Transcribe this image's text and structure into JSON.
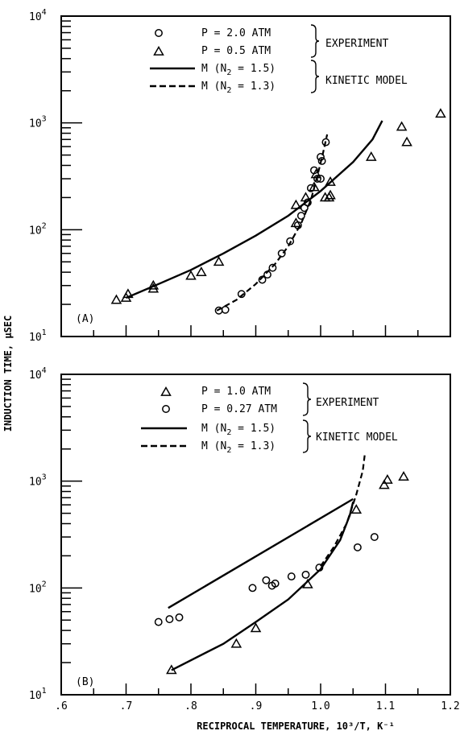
{
  "figure": {
    "ylabel": "INDUCTION TIME, μSEC",
    "xlabel": "RECIPROCAL TEMPERATURE, 10³/T, K⁻¹",
    "x_ticks": [
      ".6",
      ".7",
      ".8",
      ".9",
      "1.0",
      "1.1",
      "1.2"
    ]
  },
  "chart_data": [
    {
      "type": "scatter",
      "panel_label": "(A)",
      "x": {
        "lim": [
          0.6,
          1.2
        ],
        "scale": "linear"
      },
      "y": {
        "lim": [
          10,
          10000
        ],
        "scale": "log",
        "ticks": [
          10,
          100,
          1000,
          10000
        ]
      },
      "y_tick_labels": [
        {
          "base": "10",
          "exp": "1"
        },
        {
          "base": "10",
          "exp": "2"
        },
        {
          "base": "10",
          "exp": "3"
        },
        {
          "base": "10",
          "exp": "4"
        }
      ],
      "legend": {
        "experiment_label": "EXPERIMENT",
        "model_label": "KINETIC MODEL",
        "entries": [
          {
            "symbol": "circle",
            "text": "P = 2.0 ATM"
          },
          {
            "symbol": "triangle",
            "text": "P = 0.5 ATM"
          },
          {
            "symbol": "solid",
            "text": "M (N2 = 1.5)"
          },
          {
            "symbol": "dashed",
            "text": "M (N2 = 1.3)"
          }
        ]
      },
      "series": [
        {
          "name": "P = 2.0 ATM",
          "marker": "circle",
          "points": [
            [
              0.843,
              17.5
            ],
            [
              0.853,
              17.8
            ],
            [
              0.878,
              25
            ],
            [
              0.91,
              34
            ],
            [
              0.918,
              38
            ],
            [
              0.926,
              44
            ],
            [
              0.94,
              60
            ],
            [
              0.953,
              78
            ],
            [
              0.965,
              110
            ],
            [
              0.97,
              135
            ],
            [
              0.975,
              160
            ],
            [
              0.98,
              180
            ],
            [
              0.985,
              245
            ],
            [
              0.99,
              360
            ],
            [
              0.995,
              300
            ],
            [
              1.0,
              480
            ],
            [
              1.0,
              300
            ],
            [
              1.002,
              440
            ],
            [
              1.008,
              660
            ]
          ]
        },
        {
          "name": "P = 0.5 ATM",
          "marker": "triangle",
          "points": [
            [
              0.685,
              22
            ],
            [
              0.7,
              23
            ],
            [
              0.703,
              25
            ],
            [
              0.742,
              28
            ],
            [
              0.742,
              30
            ],
            [
              0.8,
              37
            ],
            [
              0.816,
              40
            ],
            [
              0.843,
              50
            ],
            [
              0.962,
              115
            ],
            [
              0.962,
              170
            ],
            [
              0.977,
              200
            ],
            [
              0.99,
              250
            ],
            [
              0.993,
              330
            ],
            [
              1.007,
              200
            ],
            [
              1.013,
              200
            ],
            [
              1.015,
              210
            ],
            [
              1.015,
              280
            ],
            [
              1.078,
              480
            ],
            [
              1.125,
              920
            ],
            [
              1.133,
              660
            ],
            [
              1.185,
              1220
            ]
          ]
        },
        {
          "name": "M (N2 = 1.5)",
          "line": "solid",
          "points": [
            [
              0.7,
              23
            ],
            [
              0.75,
              31
            ],
            [
              0.8,
              42
            ],
            [
              0.85,
              60
            ],
            [
              0.9,
              88
            ],
            [
              0.95,
              135
            ],
            [
              1.0,
              230
            ],
            [
              1.05,
              430
            ],
            [
              1.08,
              700
            ],
            [
              1.095,
              1050
            ]
          ]
        },
        {
          "name": "M (N2 = 1.3)",
          "line": "dashed",
          "points": [
            [
              0.84,
              17.5
            ],
            [
              0.87,
              22
            ],
            [
              0.9,
              31
            ],
            [
              0.93,
              48
            ],
            [
              0.95,
              70
            ],
            [
              0.97,
              115
            ],
            [
              0.985,
              190
            ],
            [
              0.995,
              320
            ],
            [
              1.003,
              500
            ],
            [
              1.01,
              780
            ]
          ]
        }
      ]
    },
    {
      "type": "scatter",
      "panel_label": "(B)",
      "x": {
        "lim": [
          0.6,
          1.2
        ],
        "scale": "linear"
      },
      "y": {
        "lim": [
          10,
          10000
        ],
        "scale": "log",
        "ticks": [
          10,
          100,
          1000,
          10000
        ]
      },
      "y_tick_labels": [
        {
          "base": "10",
          "exp": "1"
        },
        {
          "base": "10",
          "exp": "2"
        },
        {
          "base": "10",
          "exp": "3"
        },
        {
          "base": "10",
          "exp": "4"
        }
      ],
      "legend": {
        "experiment_label": "EXPERIMENT",
        "model_label": "KINETIC MODEL",
        "entries": [
          {
            "symbol": "triangle",
            "text": "P = 1.0 ATM"
          },
          {
            "symbol": "circle",
            "text": "P = 0.27 ATM"
          },
          {
            "symbol": "solid",
            "text": "M (N2 = 1.5)"
          },
          {
            "symbol": "dashed",
            "text": "M (N2 = 1.3)"
          }
        ]
      },
      "series": [
        {
          "name": "P = 1.0 ATM",
          "marker": "triangle",
          "points": [
            [
              0.77,
              17
            ],
            [
              0.87,
              30
            ],
            [
              0.9,
              42
            ],
            [
              0.98,
              108
            ],
            [
              1.055,
              540
            ],
            [
              1.098,
              920
            ],
            [
              1.103,
              1030
            ],
            [
              1.128,
              1100
            ]
          ]
        },
        {
          "name": "P = 0.27 ATM",
          "marker": "circle",
          "points": [
            [
              0.75,
              48
            ],
            [
              0.767,
              51
            ],
            [
              0.782,
              53
            ],
            [
              0.895,
              100
            ],
            [
              0.916,
              118
            ],
            [
              0.925,
              105
            ],
            [
              0.93,
              110
            ],
            [
              0.955,
              128
            ],
            [
              0.977,
              133
            ],
            [
              0.998,
              155
            ],
            [
              1.057,
              240
            ],
            [
              1.083,
              300
            ]
          ]
        },
        {
          "name": "M (N2 = 1.5)",
          "line": "solid",
          "points": [
            [
              0.765,
              65
            ],
            [
              1.05,
              680
            ]
          ]
        },
        {
          "name": "M (N2 = 1.5)",
          "line": "solid",
          "points": [
            [
              0.77,
              17
            ],
            [
              0.85,
              30
            ],
            [
              0.9,
              48
            ],
            [
              0.95,
              78
            ],
            [
              1.0,
              150
            ],
            [
              1.03,
              280
            ],
            [
              1.045,
              480
            ],
            [
              1.05,
              640
            ]
          ]
        },
        {
          "name": "M (N2 = 1.3)",
          "line": "dashed",
          "points": [
            [
              1.0,
              160
            ],
            [
              1.02,
              240
            ],
            [
              1.04,
              400
            ],
            [
              1.055,
              750
            ],
            [
              1.065,
              1250
            ],
            [
              1.068,
              1750
            ]
          ]
        }
      ]
    }
  ]
}
